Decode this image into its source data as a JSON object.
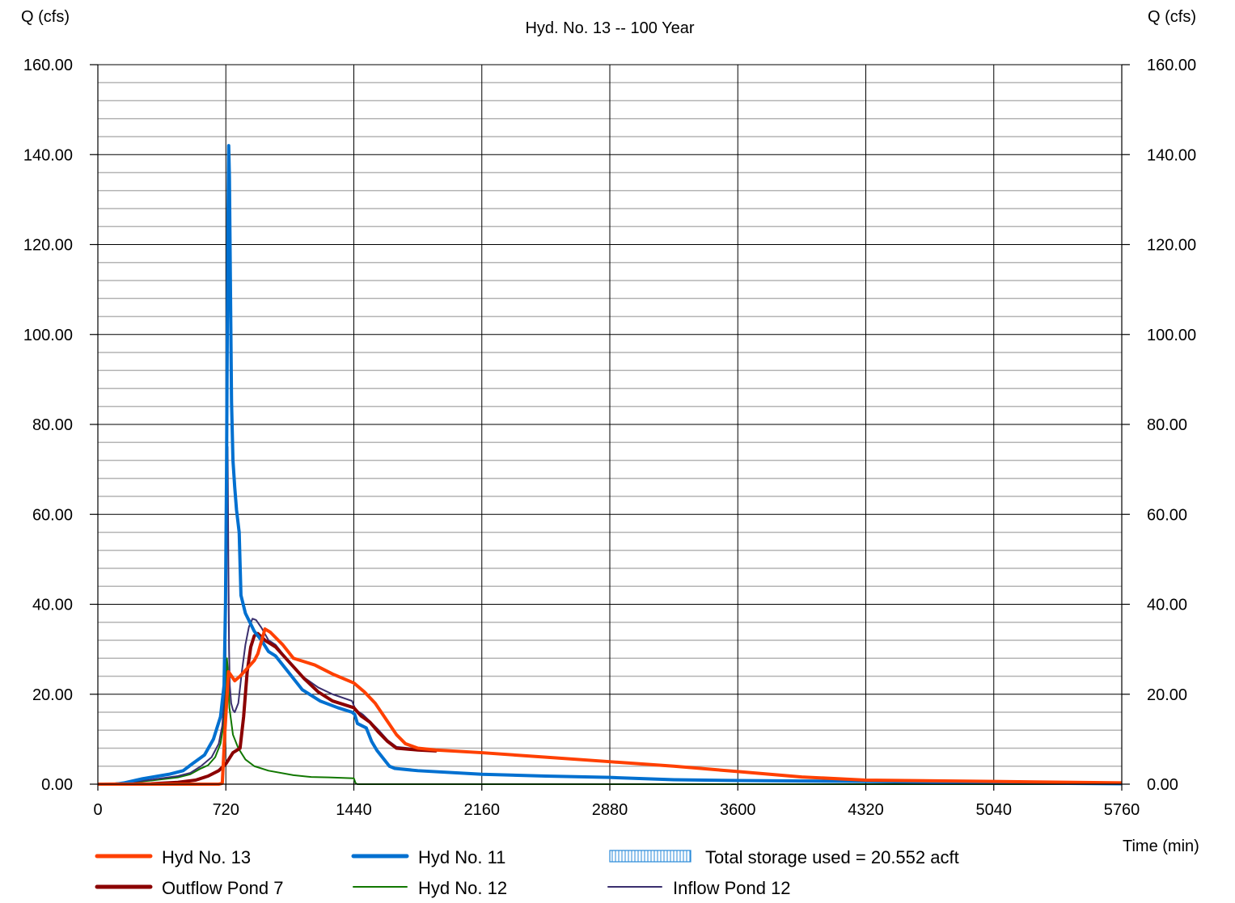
{
  "chart_data": {
    "type": "line",
    "title": "Hyd. No. 13 -- 100 Year",
    "ylabel_left": "Q (cfs)",
    "ylabel_right": "Q (cfs)",
    "xlabel": "Time (min)",
    "xlim": [
      0,
      5760
    ],
    "ylim": [
      0,
      160
    ],
    "x_ticks": [
      "0",
      "720",
      "1440",
      "2160",
      "2880",
      "3600",
      "4320",
      "5040",
      "5760"
    ],
    "y_ticks": [
      "0.00",
      "20.00",
      "40.00",
      "60.00",
      "80.00",
      "100.00",
      "120.00",
      "140.00",
      "160.00"
    ],
    "grid": true,
    "legend_position": "bottom",
    "storage_note": "Total storage used = 20.552 acft",
    "series": [
      {
        "name": "Hyd No. 13",
        "color": "#ff4000",
        "width": 4,
        "points": [
          [
            0,
            0
          ],
          [
            680,
            0
          ],
          [
            700,
            0.2
          ],
          [
            715,
            12
          ],
          [
            735,
            25
          ],
          [
            770,
            23
          ],
          [
            800,
            24
          ],
          [
            880,
            27.5
          ],
          [
            900,
            29
          ],
          [
            940,
            34.5
          ],
          [
            970,
            33.8
          ],
          [
            1040,
            31
          ],
          [
            1100,
            28
          ],
          [
            1220,
            26.5
          ],
          [
            1320,
            24.5
          ],
          [
            1440,
            22.5
          ],
          [
            1500,
            20.5
          ],
          [
            1560,
            18
          ],
          [
            1620,
            14.5
          ],
          [
            1680,
            11
          ],
          [
            1730,
            9
          ],
          [
            1800,
            8
          ],
          [
            1900,
            7.6
          ],
          [
            2160,
            7
          ],
          [
            2520,
            6
          ],
          [
            2880,
            5
          ],
          [
            3240,
            4
          ],
          [
            3600,
            2.8
          ],
          [
            3960,
            1.6
          ],
          [
            4320,
            0.9
          ],
          [
            5040,
            0.6
          ],
          [
            5760,
            0.3
          ]
        ]
      },
      {
        "name": "Hyd No. 11",
        "color": "#0070d0",
        "width": 4,
        "points": [
          [
            0,
            0
          ],
          [
            100,
            0
          ],
          [
            150,
            0.3
          ],
          [
            250,
            1.2
          ],
          [
            400,
            2.2
          ],
          [
            480,
            3
          ],
          [
            530,
            4.5
          ],
          [
            600,
            6.5
          ],
          [
            650,
            10
          ],
          [
            690,
            15
          ],
          [
            710,
            22
          ],
          [
            718,
            40
          ],
          [
            724,
            70
          ],
          [
            728,
            100
          ],
          [
            732,
            125
          ],
          [
            736,
            142
          ],
          [
            740,
            135
          ],
          [
            746,
            110
          ],
          [
            752,
            85
          ],
          [
            760,
            72
          ],
          [
            770,
            66
          ],
          [
            780,
            61
          ],
          [
            795,
            56
          ],
          [
            805,
            42
          ],
          [
            830,
            38
          ],
          [
            880,
            34
          ],
          [
            920,
            32
          ],
          [
            960,
            29.5
          ],
          [
            1000,
            28.5
          ],
          [
            1060,
            25.5
          ],
          [
            1150,
            21
          ],
          [
            1250,
            18.5
          ],
          [
            1350,
            17
          ],
          [
            1430,
            16
          ],
          [
            1445,
            15.5
          ],
          [
            1460,
            13.5
          ],
          [
            1510,
            12.5
          ],
          [
            1540,
            9.5
          ],
          [
            1570,
            7.5
          ],
          [
            1610,
            5.5
          ],
          [
            1640,
            4
          ],
          [
            1670,
            3.5
          ],
          [
            1800,
            3
          ],
          [
            2160,
            2.2
          ],
          [
            2520,
            1.8
          ],
          [
            2880,
            1.5
          ],
          [
            3240,
            1.0
          ],
          [
            3600,
            0.8
          ],
          [
            4320,
            0.6
          ],
          [
            5040,
            0.3
          ],
          [
            5760,
            0.1
          ]
        ]
      },
      {
        "name": "Outflow Pond 7",
        "color": "#8b0000",
        "width": 4,
        "points": [
          [
            0,
            0
          ],
          [
            300,
            0.1
          ],
          [
            450,
            0.4
          ],
          [
            550,
            0.9
          ],
          [
            620,
            1.8
          ],
          [
            680,
            3
          ],
          [
            720,
            4.5
          ],
          [
            760,
            7
          ],
          [
            780,
            7.5
          ],
          [
            800,
            8
          ],
          [
            820,
            15
          ],
          [
            840,
            25
          ],
          [
            860,
            30.5
          ],
          [
            880,
            33
          ],
          [
            900,
            33.5
          ],
          [
            940,
            32
          ],
          [
            1000,
            30.5
          ],
          [
            1080,
            27
          ],
          [
            1160,
            23.5
          ],
          [
            1240,
            20.5
          ],
          [
            1320,
            18.5
          ],
          [
            1440,
            17
          ],
          [
            1480,
            15.2
          ],
          [
            1530,
            13.8
          ],
          [
            1580,
            11.5
          ],
          [
            1630,
            9.5
          ],
          [
            1680,
            8
          ],
          [
            1800,
            7.6
          ],
          [
            1900,
            7.4
          ]
        ]
      },
      {
        "name": "Hyd No. 12",
        "color": "#117700",
        "width": 2,
        "points": [
          [
            0,
            0
          ],
          [
            150,
            0.3
          ],
          [
            300,
            0.8
          ],
          [
            450,
            1.5
          ],
          [
            520,
            2.2
          ],
          [
            580,
            3.5
          ],
          [
            620,
            4.2
          ],
          [
            660,
            6
          ],
          [
            690,
            9
          ],
          [
            710,
            14
          ],
          [
            720,
            22
          ],
          [
            726,
            28
          ],
          [
            732,
            25
          ],
          [
            740,
            17
          ],
          [
            760,
            11
          ],
          [
            790,
            8
          ],
          [
            830,
            5.5
          ],
          [
            880,
            4
          ],
          [
            960,
            3
          ],
          [
            1100,
            2
          ],
          [
            1200,
            1.6
          ],
          [
            1300,
            1.5
          ],
          [
            1440,
            1.3
          ],
          [
            1450,
            0.2
          ],
          [
            1460,
            0
          ],
          [
            5760,
            0
          ]
        ]
      },
      {
        "name": "Inflow Pond 12",
        "color": "#3a2f6e",
        "width": 2,
        "points": [
          [
            0,
            0
          ],
          [
            150,
            0.3
          ],
          [
            300,
            1
          ],
          [
            450,
            1.8
          ],
          [
            520,
            2.5
          ],
          [
            580,
            4
          ],
          [
            640,
            6
          ],
          [
            680,
            9
          ],
          [
            700,
            13
          ],
          [
            712,
            20
          ],
          [
            718,
            30
          ],
          [
            722,
            45
          ],
          [
            726,
            60
          ],
          [
            730,
            75
          ],
          [
            734,
            50
          ],
          [
            738,
            30
          ],
          [
            742,
            22
          ],
          [
            750,
            18
          ],
          [
            760,
            16.5
          ],
          [
            770,
            16
          ],
          [
            790,
            18
          ],
          [
            810,
            25
          ],
          [
            830,
            31
          ],
          [
            850,
            35
          ],
          [
            870,
            36.8
          ],
          [
            890,
            36.5
          ],
          [
            920,
            34.8
          ],
          [
            960,
            32
          ],
          [
            1000,
            31
          ],
          [
            1060,
            28
          ],
          [
            1150,
            24
          ],
          [
            1240,
            21.5
          ],
          [
            1320,
            20
          ],
          [
            1430,
            18.5
          ],
          [
            1450,
            16.5
          ],
          [
            1490,
            15.5
          ],
          [
            1530,
            14
          ],
          [
            1580,
            12
          ],
          [
            1630,
            9.8
          ],
          [
            1680,
            8.3
          ],
          [
            1800,
            7.8
          ],
          [
            1900,
            7.6
          ]
        ]
      }
    ],
    "legend_items": [
      {
        "label": "Hyd No. 13",
        "kind": "thick",
        "color": "#ff4000"
      },
      {
        "label": "Hyd No. 11",
        "kind": "thick",
        "color": "#0070d0"
      },
      {
        "label": "Total storage used = 20.552 acft",
        "kind": "hatch",
        "color": "#2a8ad8"
      },
      {
        "label": "Outflow Pond 7",
        "kind": "thick",
        "color": "#8b0000"
      },
      {
        "label": "Hyd No. 12",
        "kind": "thin",
        "color": "#117700"
      },
      {
        "label": "Inflow Pond 12",
        "kind": "thin",
        "color": "#3a2f6e"
      }
    ]
  }
}
